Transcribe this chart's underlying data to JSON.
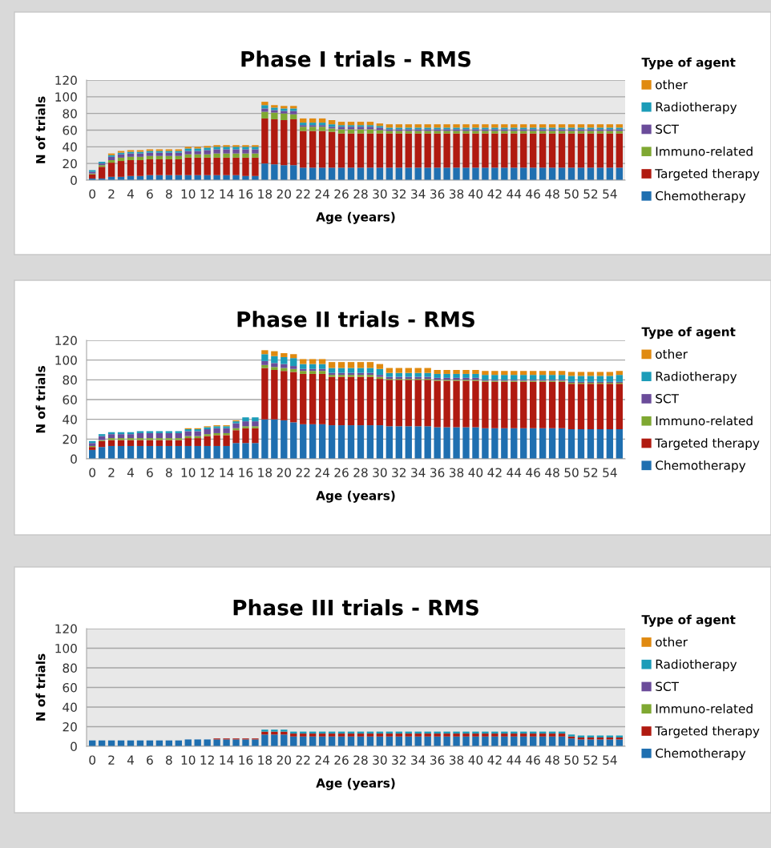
{
  "chart_data": [
    {
      "type": "bar",
      "stacked": true,
      "title": "Phase I trials - RMS",
      "xlabel": "Age (years)",
      "ylabel": "N of trials",
      "legend_title": "Type of agent",
      "legend": "right",
      "grid": "y",
      "ylim": [
        0,
        120
      ],
      "yticks": [
        0,
        20,
        40,
        60,
        80,
        100,
        120
      ],
      "categories": [
        "0",
        null,
        "2",
        null,
        "4",
        null,
        "6",
        null,
        "8",
        null,
        "10",
        null,
        "12",
        null,
        "14",
        null,
        "16",
        null,
        "18",
        null,
        "20",
        null,
        "22",
        null,
        "24",
        null,
        "26",
        null,
        "28",
        null,
        "30",
        null,
        "32",
        null,
        "34",
        null,
        "36",
        null,
        "38",
        null,
        "40",
        null,
        "42",
        null,
        "44",
        null,
        "46",
        null,
        "48",
        null,
        "50",
        null,
        "52",
        null,
        "54",
        null
      ],
      "series": [
        {
          "name": "Chemotherapy",
          "color": "#1f6fb0",
          "values": [
            2,
            2,
            4,
            4,
            5,
            5,
            6,
            6,
            6,
            6,
            6,
            6,
            6,
            6,
            6,
            6,
            5,
            5,
            20,
            19,
            18,
            18,
            15,
            15,
            15,
            15,
            15,
            15,
            15,
            15,
            15,
            15,
            15,
            15,
            15,
            15,
            15,
            15,
            15,
            15,
            15,
            15,
            15,
            15,
            15,
            15,
            15,
            15,
            15,
            15,
            15,
            15,
            15,
            15,
            15,
            15
          ]
        },
        {
          "name": "Targeted therapy",
          "color": "#b01a10",
          "values": [
            5,
            14,
            17,
            19,
            19,
            19,
            19,
            19,
            19,
            19,
            21,
            21,
            21,
            21,
            21,
            21,
            22,
            22,
            54,
            54,
            54,
            55,
            44,
            44,
            44,
            43,
            41,
            41,
            41,
            41,
            41,
            41,
            41,
            41,
            41,
            41,
            41,
            41,
            41,
            41,
            41,
            41,
            41,
            41,
            41,
            41,
            41,
            41,
            41,
            41,
            41,
            41,
            41,
            41,
            41,
            41
          ]
        },
        {
          "name": "Immuno-related",
          "color": "#7fa832",
          "values": [
            1,
            2,
            3,
            4,
            4,
            4,
            4,
            4,
            4,
            4,
            4,
            4,
            4,
            5,
            5,
            5,
            5,
            5,
            8,
            8,
            8,
            6,
            5,
            5,
            5,
            4,
            5,
            5,
            5,
            5,
            4,
            3,
            3,
            3,
            3,
            3,
            3,
            3,
            3,
            3,
            3,
            3,
            3,
            3,
            3,
            3,
            3,
            3,
            3,
            3,
            3,
            3,
            3,
            3,
            3,
            3
          ]
        },
        {
          "name": "SCT",
          "color": "#6b4c9a",
          "values": [
            2,
            2,
            4,
            4,
            4,
            4,
            4,
            4,
            4,
            4,
            4,
            4,
            5,
            5,
            5,
            5,
            5,
            5,
            4,
            3,
            3,
            4,
            2,
            2,
            2,
            2,
            3,
            3,
            3,
            3,
            3,
            2,
            2,
            2,
            2,
            2,
            2,
            2,
            2,
            2,
            2,
            2,
            2,
            2,
            2,
            2,
            2,
            2,
            2,
            2,
            2,
            2,
            2,
            2,
            2,
            2
          ]
        },
        {
          "name": "Radiotherapy",
          "color": "#1b9cb8",
          "values": [
            2,
            2,
            2,
            2,
            2,
            2,
            2,
            2,
            2,
            2,
            3,
            3,
            3,
            3,
            3,
            3,
            3,
            3,
            4,
            3,
            3,
            3,
            3,
            3,
            3,
            3,
            2,
            2,
            2,
            2,
            2,
            2,
            2,
            2,
            2,
            2,
            2,
            2,
            2,
            2,
            2,
            2,
            2,
            2,
            2,
            2,
            2,
            2,
            2,
            2,
            2,
            2,
            2,
            2,
            2,
            2
          ]
        },
        {
          "name": "other",
          "color": "#e08a10",
          "values": [
            0,
            0,
            2,
            2,
            2,
            2,
            2,
            2,
            2,
            2,
            2,
            2,
            2,
            2,
            2,
            2,
            2,
            2,
            4,
            3,
            3,
            3,
            5,
            5,
            5,
            5,
            4,
            4,
            4,
            4,
            3,
            4,
            4,
            4,
            4,
            4,
            4,
            4,
            4,
            4,
            4,
            4,
            4,
            4,
            4,
            4,
            4,
            4,
            4,
            4,
            4,
            4,
            4,
            4,
            4,
            4
          ]
        }
      ]
    },
    {
      "type": "bar",
      "stacked": true,
      "title": "Phase II trials - RMS",
      "xlabel": "Age (years)",
      "ylabel": "N of trials",
      "legend_title": "Type of agent",
      "legend": "right",
      "grid": "y",
      "ylim": [
        0,
        120
      ],
      "yticks": [
        0,
        20,
        40,
        60,
        80,
        100,
        120
      ],
      "categories": [
        "0",
        null,
        "2",
        null,
        "4",
        null,
        "6",
        null,
        "8",
        null,
        "10",
        null,
        "12",
        null,
        "14",
        null,
        "16",
        null,
        "18",
        null,
        "20",
        null,
        "22",
        null,
        "24",
        null,
        "26",
        null,
        "28",
        null,
        "30",
        null,
        "32",
        null,
        "34",
        null,
        "36",
        null,
        "38",
        null,
        "40",
        null,
        "42",
        null,
        "44",
        null,
        "46",
        null,
        "48",
        null,
        "50",
        null,
        "52",
        null,
        "54",
        null
      ],
      "series": [
        {
          "name": "Chemotherapy",
          "color": "#1f6fb0",
          "values": [
            9,
            12,
            13,
            13,
            13,
            13,
            13,
            13,
            13,
            13,
            13,
            13,
            13,
            13,
            13,
            16,
            16,
            16,
            40,
            40,
            39,
            37,
            35,
            35,
            35,
            34,
            34,
            34,
            34,
            34,
            34,
            33,
            33,
            33,
            33,
            33,
            32,
            32,
            32,
            32,
            32,
            31,
            31,
            31,
            31,
            31,
            31,
            31,
            31,
            31,
            30,
            30,
            30,
            30,
            30,
            30
          ]
        },
        {
          "name": "Targeted therapy",
          "color": "#b01a10",
          "values": [
            3,
            6,
            6,
            6,
            6,
            6,
            6,
            6,
            6,
            6,
            8,
            8,
            10,
            11,
            11,
            13,
            15,
            15,
            52,
            50,
            50,
            51,
            51,
            51,
            51,
            49,
            49,
            49,
            49,
            49,
            47,
            47,
            47,
            47,
            47,
            47,
            47,
            47,
            47,
            47,
            47,
            47,
            47,
            47,
            47,
            47,
            47,
            47,
            47,
            47,
            46,
            46,
            46,
            46,
            46,
            46
          ]
        },
        {
          "name": "Immuno-related",
          "color": "#7fa832",
          "values": [
            1,
            1,
            2,
            2,
            2,
            2,
            2,
            2,
            2,
            2,
            2,
            2,
            2,
            2,
            2,
            2,
            2,
            2,
            3,
            3,
            3,
            3,
            3,
            3,
            3,
            2,
            2,
            2,
            2,
            2,
            2,
            1,
            1,
            1,
            1,
            1,
            1,
            1,
            1,
            1,
            1,
            1,
            1,
            1,
            1,
            1,
            1,
            1,
            1,
            1,
            1,
            1,
            1,
            1,
            1,
            1
          ]
        },
        {
          "name": "SCT",
          "color": "#6b4c9a",
          "values": [
            3,
            4,
            4,
            4,
            4,
            5,
            5,
            5,
            5,
            5,
            5,
            5,
            5,
            5,
            5,
            5,
            5,
            5,
            4,
            4,
            4,
            3,
            2,
            2,
            2,
            2,
            2,
            2,
            2,
            2,
            2,
            2,
            2,
            2,
            2,
            2,
            2,
            2,
            2,
            2,
            2,
            1,
            1,
            1,
            1,
            1,
            1,
            1,
            1,
            1,
            1,
            1,
            1,
            1,
            1,
            1
          ]
        },
        {
          "name": "Radiotherapy",
          "color": "#1b9cb8",
          "values": [
            2,
            2,
            2,
            2,
            2,
            2,
            2,
            2,
            2,
            2,
            2,
            2,
            2,
            2,
            2,
            2,
            4,
            4,
            7,
            7,
            7,
            8,
            5,
            5,
            5,
            5,
            5,
            5,
            5,
            5,
            6,
            4,
            4,
            4,
            4,
            4,
            4,
            4,
            4,
            4,
            4,
            5,
            5,
            5,
            5,
            5,
            5,
            5,
            5,
            5,
            6,
            6,
            6,
            6,
            6,
            7
          ]
        },
        {
          "name": "other",
          "color": "#e08a10",
          "values": [
            0,
            0,
            0,
            0,
            0,
            0,
            0,
            0,
            0,
            0,
            1,
            1,
            1,
            1,
            1,
            1,
            0,
            0,
            4,
            5,
            4,
            4,
            5,
            5,
            5,
            6,
            6,
            6,
            6,
            6,
            5,
            5,
            5,
            5,
            5,
            5,
            4,
            4,
            4,
            4,
            4,
            4,
            4,
            4,
            4,
            4,
            4,
            4,
            4,
            4,
            4,
            4,
            4,
            4,
            4,
            4
          ]
        }
      ]
    },
    {
      "type": "bar",
      "stacked": true,
      "title": "Phase III trials - RMS",
      "xlabel": "Age (years)",
      "ylabel": "N of trials",
      "legend_title": "Type of agent",
      "legend": "right",
      "grid": "y",
      "ylim": [
        0,
        120
      ],
      "yticks": [
        0,
        20,
        40,
        60,
        80,
        100,
        120
      ],
      "categories": [
        "0",
        null,
        "2",
        null,
        "4",
        null,
        "6",
        null,
        "8",
        null,
        "10",
        null,
        "12",
        null,
        "14",
        null,
        "16",
        null,
        "18",
        null,
        "20",
        null,
        "22",
        null,
        "24",
        null,
        "26",
        null,
        "28",
        null,
        "30",
        null,
        "32",
        null,
        "34",
        null,
        "36",
        null,
        "38",
        null,
        "40",
        null,
        "42",
        null,
        "44",
        null,
        "46",
        null,
        "48",
        null,
        "50",
        null,
        "52",
        null,
        "54",
        null
      ],
      "series": [
        {
          "name": "Chemotherapy",
          "color": "#1f6fb0",
          "values": [
            6,
            6,
            6,
            6,
            6,
            6,
            6,
            6,
            6,
            6,
            7,
            7,
            7,
            7,
            7,
            7,
            7,
            7,
            12,
            12,
            12,
            10,
            10,
            10,
            10,
            10,
            10,
            10,
            10,
            10,
            10,
            10,
            10,
            10,
            10,
            10,
            10,
            10,
            10,
            10,
            10,
            10,
            10,
            10,
            10,
            10,
            10,
            10,
            10,
            10,
            8,
            7,
            7,
            7,
            7,
            7
          ]
        },
        {
          "name": "Targeted therapy",
          "color": "#b01a10",
          "values": [
            0,
            0,
            0,
            0,
            0,
            0,
            0,
            0,
            0,
            0,
            0,
            0,
            0,
            1,
            1,
            1,
            1,
            1,
            3,
            3,
            3,
            3,
            3,
            3,
            3,
            3,
            3,
            3,
            3,
            3,
            3,
            3,
            3,
            3,
            3,
            3,
            3,
            3,
            3,
            3,
            3,
            3,
            3,
            3,
            3,
            3,
            3,
            3,
            3,
            3,
            2,
            2,
            2,
            2,
            2,
            2
          ]
        },
        {
          "name": "Immuno-related",
          "color": "#7fa832",
          "values": [
            0,
            0,
            0,
            0,
            0,
            0,
            0,
            0,
            0,
            0,
            0,
            0,
            0,
            0,
            0,
            0,
            0,
            0,
            0,
            0,
            0,
            0,
            0,
            0,
            0,
            0,
            0,
            0,
            0,
            0,
            0,
            0,
            0,
            0,
            0,
            0,
            0,
            0,
            0,
            0,
            0,
            0,
            0,
            0,
            0,
            0,
            0,
            0,
            0,
            0,
            0,
            0,
            0,
            0,
            0,
            0
          ]
        },
        {
          "name": "SCT",
          "color": "#6b4c9a",
          "values": [
            0,
            0,
            0,
            0,
            0,
            0,
            0,
            0,
            0,
            0,
            0,
            0,
            0,
            0,
            0,
            0,
            0,
            0,
            0,
            0,
            0,
            0,
            0,
            0,
            0,
            0,
            0,
            0,
            0,
            0,
            0,
            0,
            0,
            0,
            0,
            0,
            0,
            0,
            0,
            0,
            0,
            0,
            0,
            0,
            0,
            0,
            0,
            0,
            0,
            0,
            0,
            0,
            0,
            0,
            0,
            0
          ]
        },
        {
          "name": "Radiotherapy",
          "color": "#1b9cb8",
          "values": [
            0,
            0,
            0,
            0,
            0,
            0,
            0,
            0,
            0,
            0,
            0,
            0,
            0,
            0,
            0,
            0,
            0,
            0,
            2,
            2,
            2,
            2,
            2,
            2,
            2,
            2,
            2,
            2,
            2,
            2,
            2,
            2,
            2,
            2,
            2,
            2,
            2,
            2,
            2,
            2,
            2,
            2,
            2,
            2,
            2,
            2,
            2,
            2,
            2,
            2,
            2,
            2,
            2,
            2,
            2,
            2
          ]
        },
        {
          "name": "other",
          "color": "#e08a10",
          "values": [
            0,
            0,
            0,
            0,
            0,
            0,
            0,
            0,
            0,
            0,
            0,
            0,
            0,
            0,
            0,
            0,
            0,
            0,
            0,
            0,
            0,
            0,
            0,
            0,
            0,
            0,
            0,
            0,
            0,
            0,
            0,
            0,
            0,
            0,
            0,
            0,
            0,
            0,
            0,
            0,
            0,
            0,
            0,
            0,
            0,
            0,
            0,
            0,
            0,
            0,
            0,
            0,
            0,
            0,
            0,
            0
          ]
        }
      ]
    }
  ]
}
